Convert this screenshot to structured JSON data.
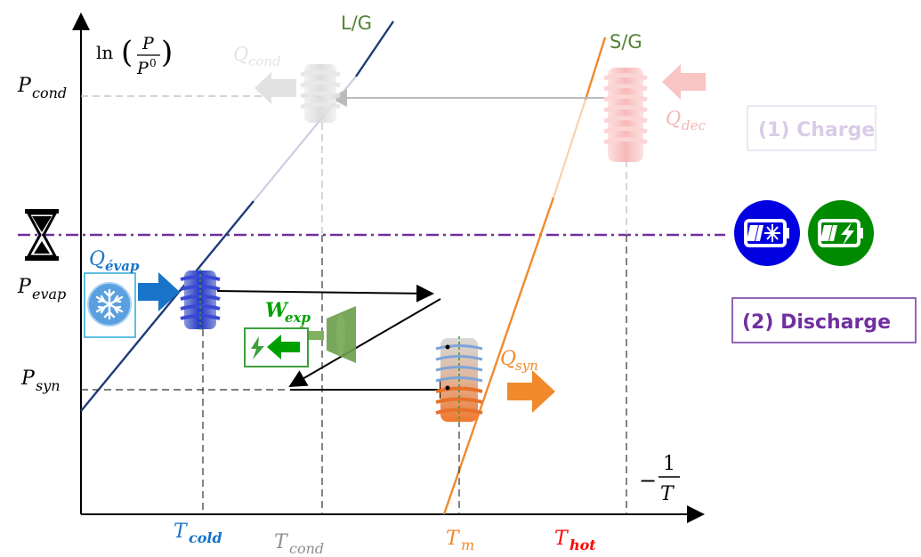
{
  "y_axis_label": {
    "prefix": "ln",
    "numerator": "P",
    "denominator": "P",
    "denominator_sup": "0"
  },
  "x_axis_label": {
    "sign": "−",
    "numerator": "1",
    "denominator": "T"
  },
  "y_ticks": {
    "p_cond": {
      "base": "P",
      "sub": "cond"
    },
    "p_evap": {
      "base": "P",
      "sub": "evap"
    },
    "p_syn": {
      "base": "P",
      "sub": "syn"
    }
  },
  "x_ticks": {
    "t_cold": {
      "base": "T",
      "sub": "cold"
    },
    "t_cond": {
      "base": "T",
      "sub": "cond"
    },
    "t_m": {
      "base": "T",
      "sub": "m"
    },
    "t_hot": {
      "base": "T",
      "sub": "hot"
    }
  },
  "curves": {
    "lg": "L/G",
    "sg": "S/G"
  },
  "heat_labels": {
    "q_cond": {
      "base": "Q",
      "sub": "cond"
    },
    "q_dec": {
      "base": "Q",
      "sub": "dec"
    },
    "q_evap": {
      "base": "Q",
      "sub": "évap"
    },
    "q_syn": {
      "base": "Q",
      "sub": "syn"
    },
    "w_exp": {
      "base": "W",
      "sub": "exp"
    }
  },
  "phases": {
    "charge": "(1) Charge",
    "discharge": "(2) Discharge"
  },
  "colors": {
    "lg_line": "#1f3a7a",
    "sg_line": "#f08a2c",
    "separator": "#7030a0",
    "charge_faded": "#d9cce8",
    "cold_blue": "#1874c8",
    "syn_orange": "#f08a2c",
    "exp_green": "#00a000",
    "hot_red": "#ff0000",
    "cond_grey": "#909090",
    "battery_cold": "#0000e0",
    "battery_green": "#008a00"
  },
  "icons": [
    "hourglass-icon",
    "snowflake-icon",
    "cold-battery-icon",
    "charging-battery-icon",
    "lightning-icon"
  ]
}
